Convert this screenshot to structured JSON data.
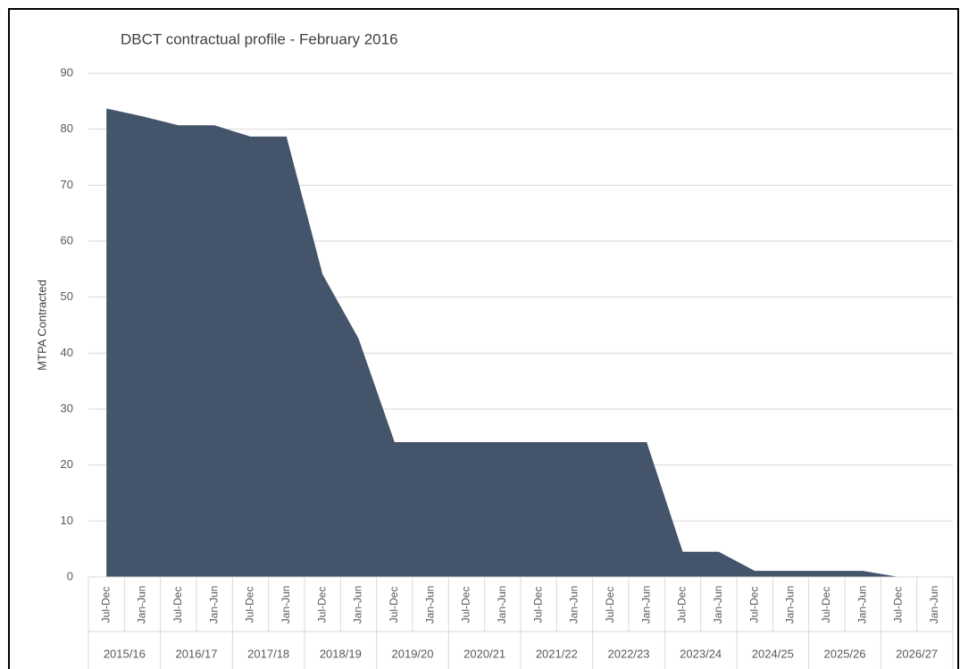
{
  "chart_data": {
    "type": "area",
    "title": "DBCT contractual profile - February 2016",
    "y_label": "MTPA Contracted",
    "categories": [
      "Jul-Dec",
      "Jan-Jun",
      "Jul-Dec",
      "Jan-Jun",
      "Jul-Dec",
      "Jan-Jun",
      "Jul-Dec",
      "Jan-Jun",
      "Jul-Dec",
      "Jan-Jun",
      "Jul-Dec",
      "Jan-Jun",
      "Jul-Dec",
      "Jan-Jun",
      "Jul-Dec",
      "Jan-Jun",
      "Jul-Dec",
      "Jan-Jun",
      "Jul-Dec",
      "Jan-Jun",
      "Jul-Dec",
      "Jan-Jun",
      "Jul-Dec",
      "Jan-Jun"
    ],
    "groups": [
      "2015/16",
      "2016/17",
      "2017/18",
      "2018/19",
      "2019/20",
      "2020/21",
      "2021/22",
      "2022/23",
      "2023/24",
      "2024/25",
      "2025/26",
      "2026/27"
    ],
    "values": [
      83.7,
      82.3,
      80.7,
      80.7,
      78.7,
      78.7,
      54.1,
      42.6,
      24.1,
      24.1,
      24.1,
      24.1,
      24.1,
      24.1,
      24.1,
      24.1,
      4.5,
      4.5,
      1.1,
      1.1,
      1.1,
      1.1,
      0,
      null
    ],
    "color": "#44546a",
    "ylim": [
      0,
      90
    ],
    "yticks": [
      0,
      10,
      20,
      30,
      40,
      50,
      60,
      70,
      80,
      90
    ],
    "grid": true
  }
}
